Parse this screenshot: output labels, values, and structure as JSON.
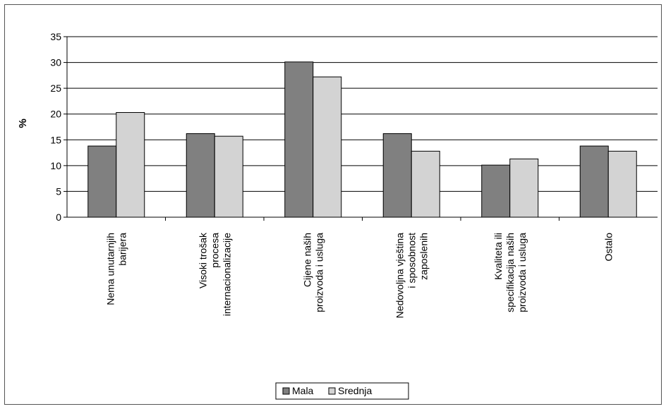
{
  "chart_data": {
    "type": "bar",
    "title": "",
    "xlabel": "",
    "ylabel": "%",
    "ylim": [
      0,
      35
    ],
    "yticks": [
      0,
      5,
      10,
      15,
      20,
      25,
      30,
      35
    ],
    "grid": true,
    "legend_position": "bottom",
    "categories": [
      [
        "Nema unutarnjih",
        "barijera"
      ],
      [
        "Visoki trošak",
        "procesa",
        "internacionalizacije"
      ],
      [
        "Cijene naših",
        "proizvoda i usluga"
      ],
      [
        "Nedovoljna vještina",
        "i sposobnost",
        "zaposlenih"
      ],
      [
        "Kvaliteta ili",
        "specifikacija naših",
        "proizvoda i usluga"
      ],
      [
        "Ostalo"
      ]
    ],
    "series": [
      {
        "name": "Mala",
        "color": "#808080",
        "values": [
          13.8,
          16.2,
          30.1,
          16.2,
          10.1,
          13.8
        ]
      },
      {
        "name": "Srednja",
        "color": "#d3d3d3",
        "values": [
          20.3,
          15.7,
          27.2,
          12.8,
          11.3,
          12.8
        ]
      }
    ]
  }
}
